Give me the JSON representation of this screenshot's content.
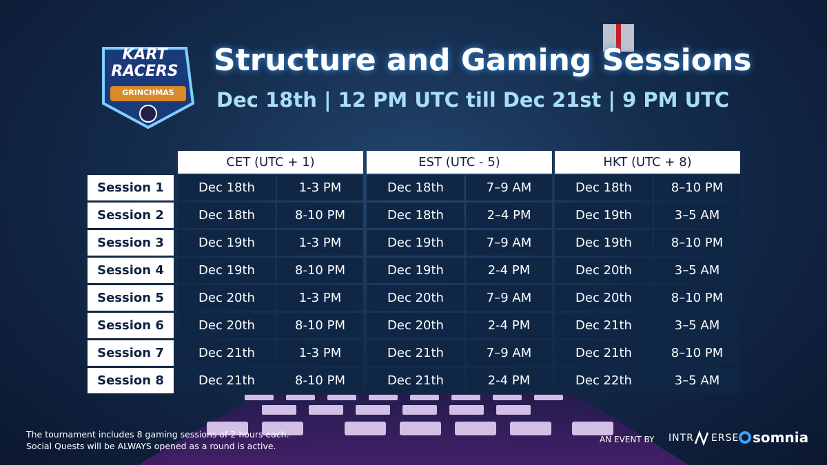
{
  "logo": {
    "line1": "KART",
    "line2": "RACERS",
    "badge": "GRINCHMAS"
  },
  "header": {
    "title": "Structure and Gaming Sessions",
    "subtitle": "Dec 18th | 12 PM UTC till Dec 21st | 9 PM UTC"
  },
  "table": {
    "columns": [
      "CET (UTC + 1)",
      "EST (UTC - 5)",
      "HKT (UTC + 8)"
    ],
    "rows": [
      [
        "Session 1",
        "Dec 18th",
        "1-3 PM",
        "Dec 18th",
        "7–9 AM",
        "Dec 18th",
        "8–10 PM"
      ],
      [
        "Session 2",
        "Dec 18th",
        "8-10 PM",
        "Dec 18th",
        "2–4 PM",
        "Dec 19th",
        "3–5 AM"
      ],
      [
        "Session 3",
        "Dec 19th",
        "1-3 PM",
        "Dec 19th",
        "7–9 AM",
        "Dec 19th",
        "8–10 PM"
      ],
      [
        "Session 4",
        "Dec 19th",
        "8-10 PM",
        "Dec 19th",
        "2-4 PM",
        "Dec 20th",
        "3–5 AM"
      ],
      [
        "Session 5",
        "Dec 20th",
        "1-3 PM",
        "Dec 20th",
        "7–9 AM",
        "Dec 20th",
        "8–10 PM"
      ],
      [
        "Session 6",
        "Dec 20th",
        "8-10 PM",
        "Dec 20th",
        "2-4 PM",
        "Dec 21th",
        "3–5 AM"
      ],
      [
        "Session 7",
        "Dec 21th",
        "1-3 PM",
        "Dec 21th",
        "7–9 AM",
        "Dec 21th",
        "8–10 PM"
      ],
      [
        "Session 8",
        "Dec 21th",
        "8-10 PM",
        "Dec 21th",
        "2-4 PM",
        "Dec 22th",
        "3–5 AM"
      ]
    ]
  },
  "footer": {
    "notes": [
      "The tournament includes 8 gaming sessions of 2 hours each.",
      "Social Quests will be ALWAYS opened as a round is active."
    ],
    "event_by": "AN EVENT BY",
    "brand1_left": "INTR",
    "brand1_right": "ERSE",
    "brand2": "somnia"
  }
}
